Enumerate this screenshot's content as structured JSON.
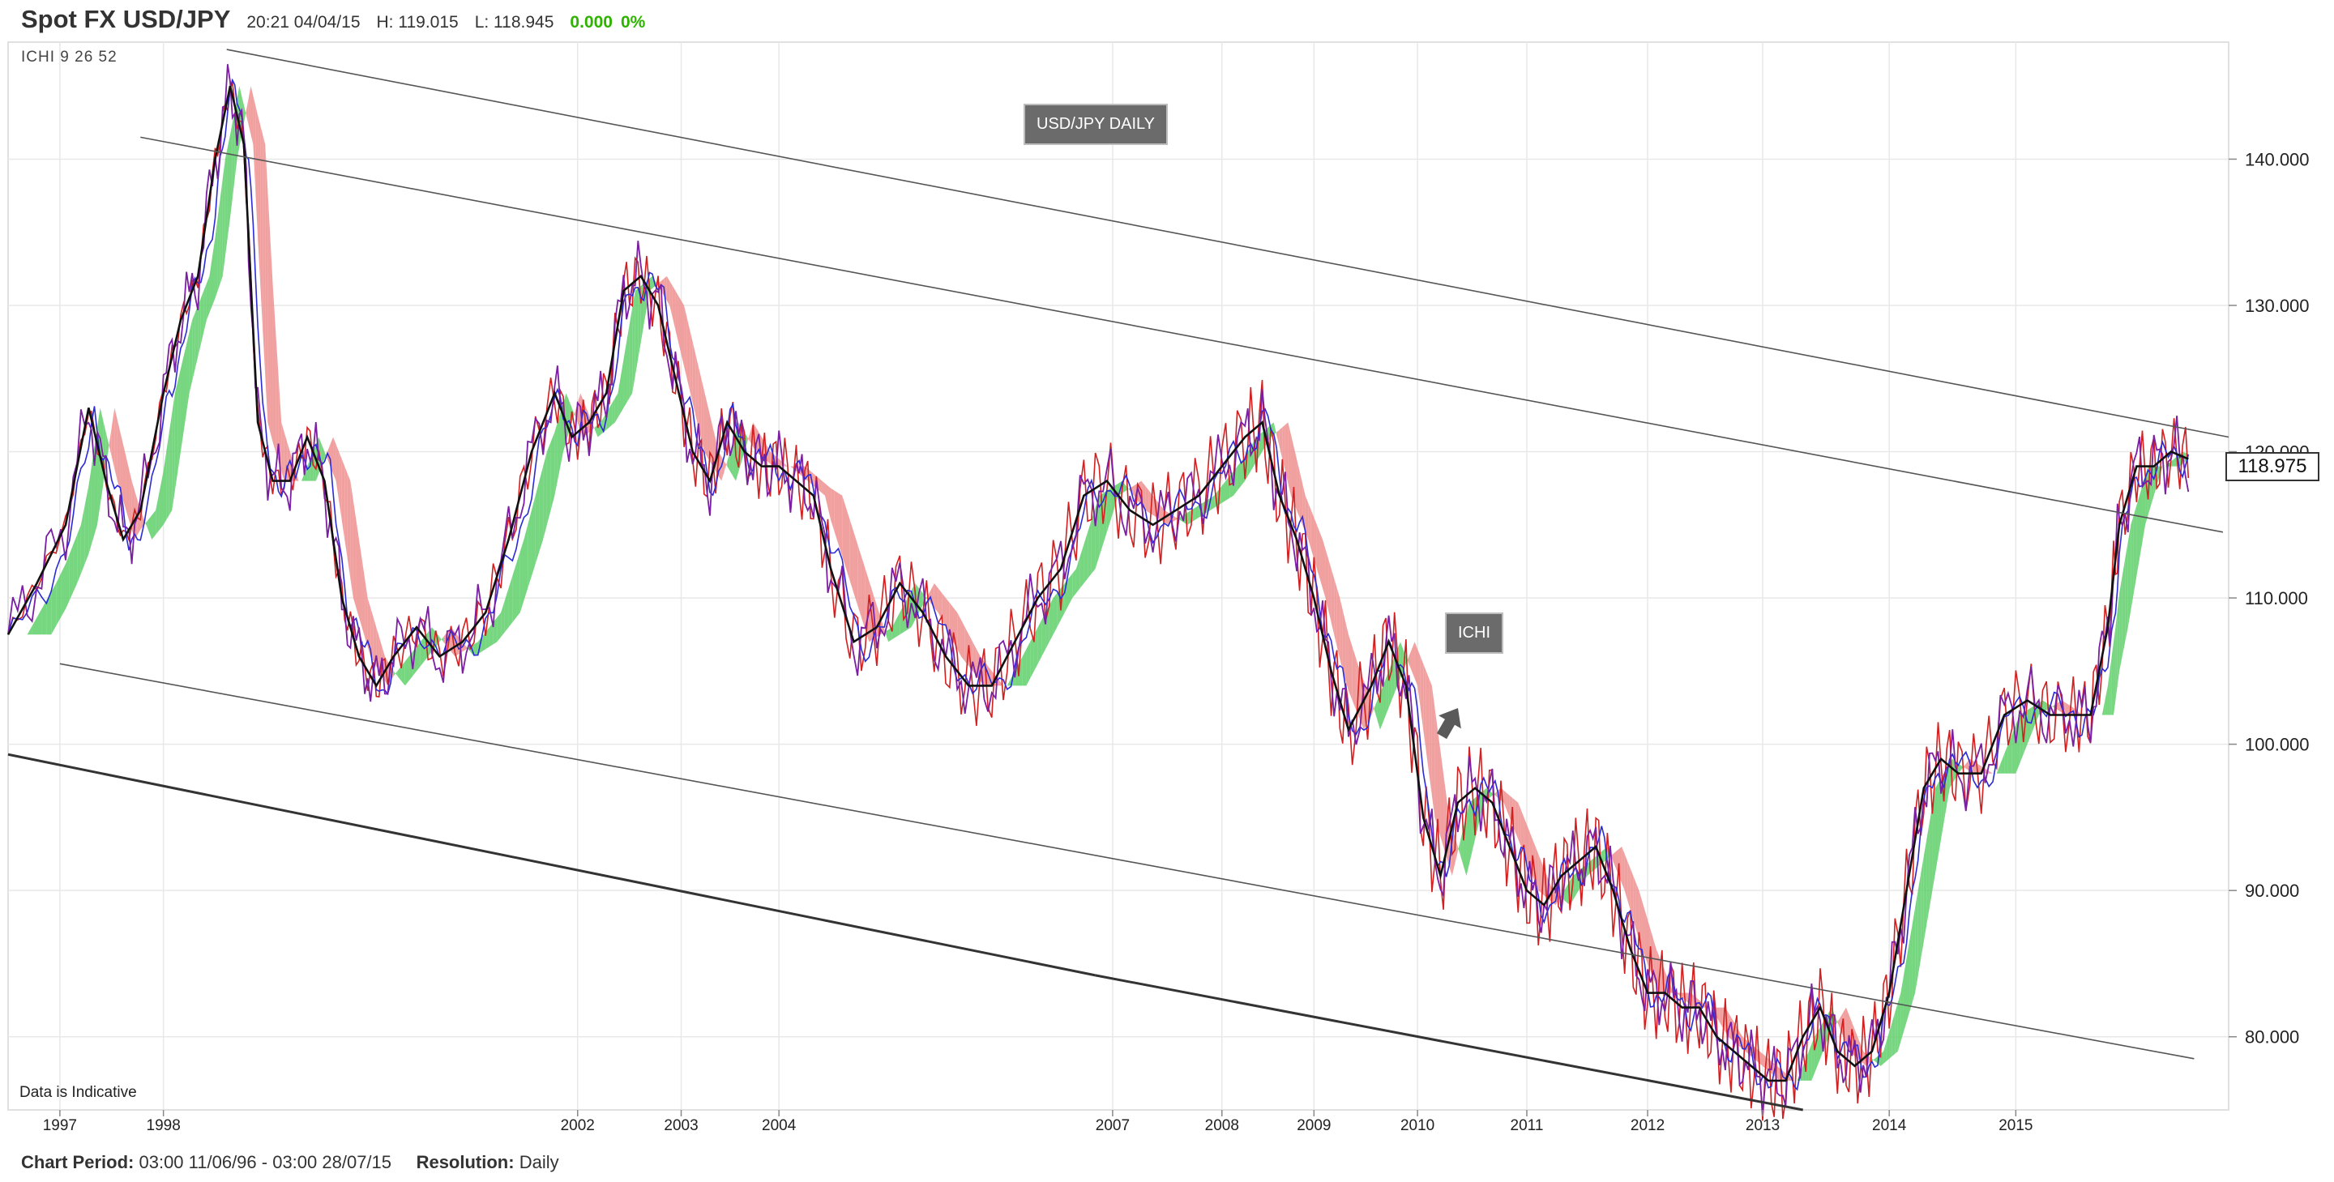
{
  "header": {
    "symbol": "Spot FX USD/JPY",
    "timestamp": "20:21 04/04/15",
    "high": "H: 119.015",
    "low": "L: 118.945",
    "change_abs": "0.000",
    "change_pct": "0%"
  },
  "indicator_label": "ICHI  9  26  52",
  "annotations": {
    "title_box": "USD/JPY DAILY",
    "ichi_box": "ICHI",
    "disclaimer": "Data is Indicative"
  },
  "last_price": "118.975",
  "footer": {
    "period_label": "Chart Period:",
    "period_value": "03:00 11/06/96 - 03:00 28/07/15",
    "resolution_label": "Resolution:",
    "resolution_value": "Daily"
  },
  "colors": {
    "bull_cloud": "#5fcf6a",
    "bear_cloud": "#ee8f8f",
    "conversion_line": "#7b1fa2",
    "base_line": "#2b2bd6",
    "lagging_line": "#d21f1f",
    "price_line": "#111111",
    "up_candle": "#2db300",
    "down_candle": "#e02020",
    "grid": "#e8e8e8"
  },
  "chart_data": {
    "type": "line",
    "title": "USD/JPY DAILY",
    "xlabel": "",
    "ylabel": "",
    "xlim": [
      1996.45,
      2015.75
    ],
    "ylim": [
      75.0,
      148.0
    ],
    "y_ticks": [
      "80.000",
      "90.000",
      "100.000",
      "110.000",
      "120.000",
      "130.000",
      "140.000"
    ],
    "x_ticks": [
      {
        "label": "1997",
        "x": 1996.9
      },
      {
        "label": "1998",
        "x": 1997.8
      },
      {
        "label": "2002",
        "x": 2001.4
      },
      {
        "label": "2003",
        "x": 2002.3
      },
      {
        "label": "2004",
        "x": 2003.15
      },
      {
        "label": "2007",
        "x": 2006.05
      },
      {
        "label": "2008",
        "x": 2007.0
      },
      {
        "label": "2009",
        "x": 2007.8
      },
      {
        "label": "2010",
        "x": 2008.7
      },
      {
        "label": "2011",
        "x": 2009.65
      },
      {
        "label": "2012",
        "x": 2010.7
      },
      {
        "label": "2013",
        "x": 2011.7
      },
      {
        "label": "2014",
        "x": 2012.8
      },
      {
        "label": "2015",
        "x": 2013.9
      }
    ],
    "series": [
      {
        "values": [
          [
            1996.45,
            107.5
          ],
          [
            1996.7,
            111
          ],
          [
            1996.95,
            115
          ],
          [
            1997.15,
            123
          ],
          [
            1997.3,
            118
          ],
          [
            1997.45,
            114
          ],
          [
            1997.6,
            116
          ],
          [
            1997.8,
            124
          ],
          [
            1997.95,
            129
          ],
          [
            1998.1,
            132
          ],
          [
            1998.25,
            140
          ],
          [
            1998.38,
            145
          ],
          [
            1998.5,
            141
          ],
          [
            1998.62,
            122
          ],
          [
            1998.75,
            118
          ],
          [
            1998.9,
            118
          ],
          [
            1999.05,
            121
          ],
          [
            1999.2,
            118
          ],
          [
            1999.35,
            110
          ],
          [
            1999.5,
            106
          ],
          [
            1999.65,
            104
          ],
          [
            1999.8,
            106
          ],
          [
            2000.0,
            108
          ],
          [
            2000.2,
            106
          ],
          [
            2000.4,
            107
          ],
          [
            2000.6,
            109
          ],
          [
            2000.8,
            114
          ],
          [
            2001.0,
            120
          ],
          [
            2001.2,
            124
          ],
          [
            2001.35,
            121
          ],
          [
            2001.5,
            122
          ],
          [
            2001.65,
            124
          ],
          [
            2001.8,
            131
          ],
          [
            2001.95,
            132
          ],
          [
            2002.1,
            130
          ],
          [
            2002.25,
            125
          ],
          [
            2002.4,
            120
          ],
          [
            2002.55,
            118
          ],
          [
            2002.7,
            122
          ],
          [
            2002.85,
            120
          ],
          [
            2003.0,
            119
          ],
          [
            2003.15,
            119
          ],
          [
            2003.3,
            118
          ],
          [
            2003.45,
            117
          ],
          [
            2003.6,
            112
          ],
          [
            2003.8,
            107
          ],
          [
            2004.0,
            108
          ],
          [
            2004.2,
            111
          ],
          [
            2004.4,
            109
          ],
          [
            2004.6,
            106
          ],
          [
            2004.8,
            104
          ],
          [
            2005.0,
            104
          ],
          [
            2005.2,
            107
          ],
          [
            2005.4,
            110
          ],
          [
            2005.6,
            112
          ],
          [
            2005.8,
            117
          ],
          [
            2006.0,
            118
          ],
          [
            2006.2,
            116
          ],
          [
            2006.4,
            115
          ],
          [
            2006.6,
            116
          ],
          [
            2006.8,
            117
          ],
          [
            2007.0,
            119
          ],
          [
            2007.2,
            121
          ],
          [
            2007.35,
            122
          ],
          [
            2007.5,
            117
          ],
          [
            2007.65,
            114
          ],
          [
            2007.8,
            110
          ],
          [
            2007.95,
            105
          ],
          [
            2008.1,
            101
          ],
          [
            2008.3,
            104
          ],
          [
            2008.45,
            107
          ],
          [
            2008.6,
            104
          ],
          [
            2008.75,
            95
          ],
          [
            2008.9,
            91
          ],
          [
            2009.05,
            96
          ],
          [
            2009.2,
            97
          ],
          [
            2009.35,
            96
          ],
          [
            2009.5,
            93
          ],
          [
            2009.65,
            90
          ],
          [
            2009.8,
            89
          ],
          [
            2009.95,
            91
          ],
          [
            2010.1,
            92
          ],
          [
            2010.25,
            93
          ],
          [
            2010.4,
            90
          ],
          [
            2010.55,
            86
          ],
          [
            2010.7,
            83
          ],
          [
            2010.85,
            83
          ],
          [
            2011.0,
            82
          ],
          [
            2011.15,
            82
          ],
          [
            2011.3,
            80
          ],
          [
            2011.45,
            79
          ],
          [
            2011.6,
            78
          ],
          [
            2011.75,
            77
          ],
          [
            2011.9,
            77
          ],
          [
            2012.05,
            80
          ],
          [
            2012.2,
            82
          ],
          [
            2012.35,
            79
          ],
          [
            2012.5,
            78
          ],
          [
            2012.65,
            79
          ],
          [
            2012.8,
            83
          ],
          [
            2012.95,
            90
          ],
          [
            2013.1,
            97
          ],
          [
            2013.25,
            99
          ],
          [
            2013.4,
            98
          ],
          [
            2013.6,
            98
          ],
          [
            2013.8,
            102
          ],
          [
            2014.0,
            103
          ],
          [
            2014.2,
            102
          ],
          [
            2014.4,
            102
          ],
          [
            2014.55,
            102
          ],
          [
            2014.7,
            108
          ],
          [
            2014.8,
            115
          ],
          [
            2014.95,
            119
          ],
          [
            2015.1,
            119
          ],
          [
            2015.25,
            120
          ],
          [
            2015.4,
            119.5
          ]
        ]
      }
    ],
    "trendlines": [
      {
        "from": [
          1998.35,
          147.5
        ],
        "to": [
          2015.75,
          121.0
        ]
      },
      {
        "from": [
          1997.6,
          141.5
        ],
        "to": [
          2015.7,
          114.5
        ]
      },
      {
        "from": [
          1996.9,
          105.5
        ],
        "to": [
          2015.45,
          78.5
        ]
      },
      {
        "from": [
          1996.45,
          99.3
        ],
        "to": [
          2005.9,
          84.2
        ]
      },
      {
        "from": [
          2005.9,
          84.2
        ],
        "to": [
          2012.05,
          75.0
        ]
      }
    ]
  }
}
